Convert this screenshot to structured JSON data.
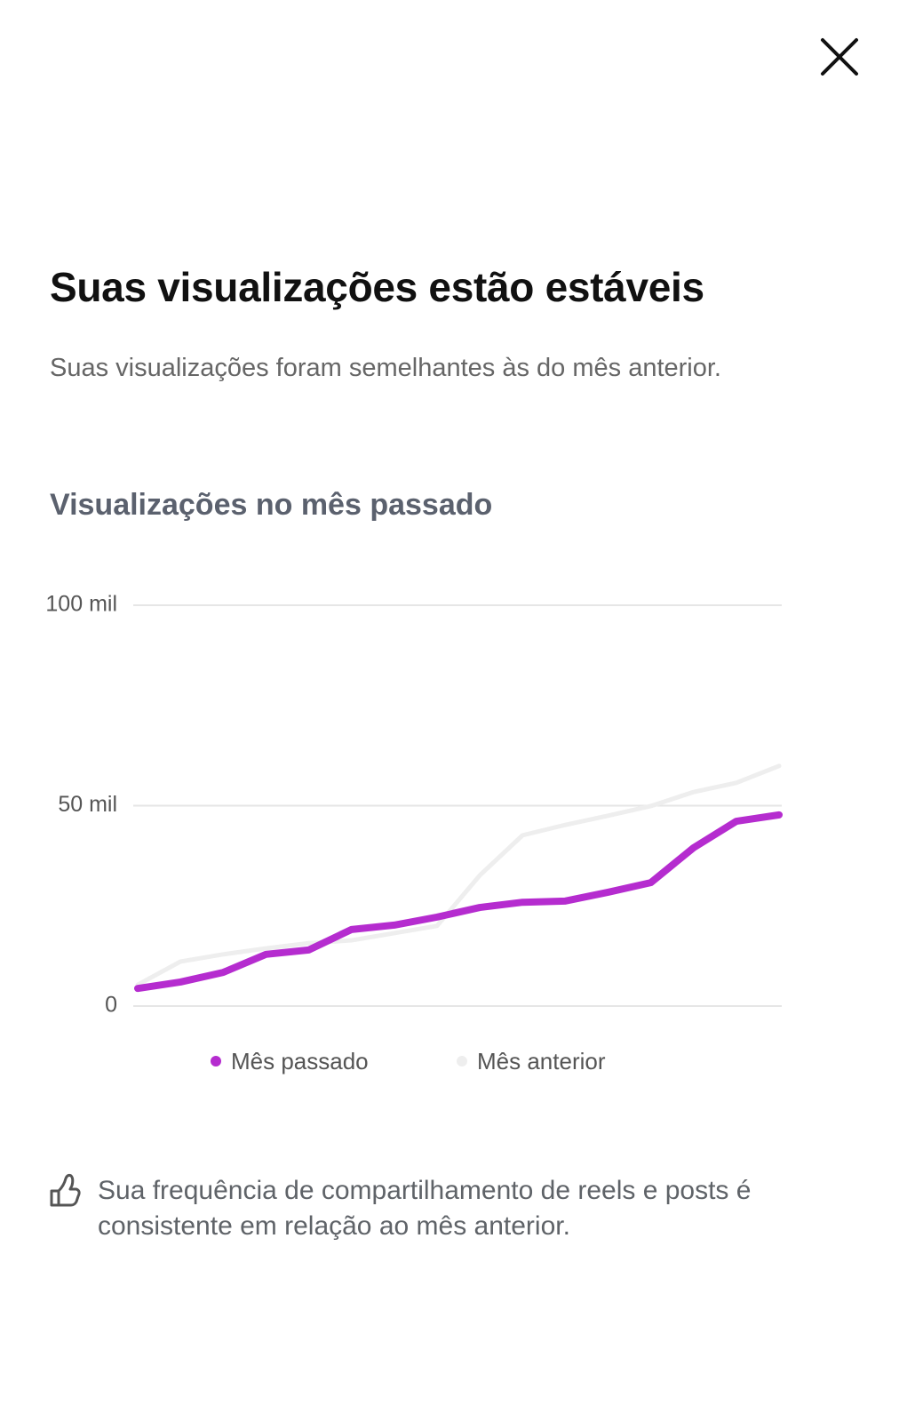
{
  "header": {
    "title": "Suas visualizações estão estáveis",
    "subtitle": "Suas visualizações foram semelhantes às do mês anterior."
  },
  "chart_data": {
    "type": "line",
    "title": "Visualizações no mês passado",
    "series": [
      {
        "name": "Mês passado",
        "color": "#b52ccf",
        "values": [
          4400,
          6000,
          8400,
          12900,
          14000,
          19100,
          20200,
          22200,
          24600,
          25900,
          26200,
          28400,
          30800,
          39500,
          46100,
          47700
        ]
      },
      {
        "name": "Mês anterior",
        "color": "#eeeeee",
        "values": [
          5300,
          11100,
          12900,
          14400,
          15700,
          16400,
          18200,
          20000,
          32600,
          42600,
          45200,
          47500,
          49900,
          53400,
          55700,
          59900
        ]
      }
    ],
    "ylim": [
      0,
      100000
    ],
    "yticks": [
      0,
      {
        "value": 50000,
        "label": "50 mil"
      },
      {
        "value": 100000,
        "label": "100 mil"
      }
    ],
    "grid": true
  },
  "note": "Sua frequência de compartilhamento de reels e posts é consistente em relação ao mês anterior."
}
